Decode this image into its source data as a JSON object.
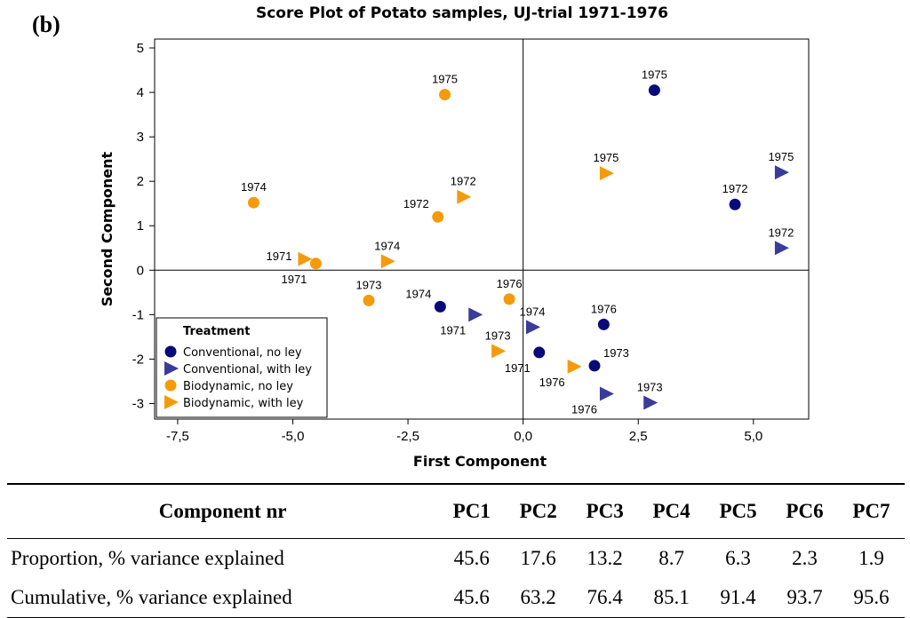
{
  "panel_label": "(b)",
  "chart_data": {
    "type": "scatter",
    "title": "Score Plot of Potato samples, UJ-trial 1971-1976",
    "xlabel": "First Component",
    "ylabel": "Second Component",
    "xlim": [
      -8.0,
      6.2
    ],
    "ylim": [
      -3.35,
      5.2
    ],
    "xticks": [
      -7.5,
      -5.0,
      -2.5,
      0.0,
      2.5,
      5.0
    ],
    "xtick_labels": [
      "-7,5",
      "-5,0",
      "-2,5",
      "0,0",
      "2,5",
      "5,0"
    ],
    "yticks": [
      -3,
      -2,
      -1,
      0,
      1,
      2,
      3,
      4,
      5
    ],
    "ytick_labels": [
      "-3",
      "-2",
      "-1",
      "0",
      "1",
      "2",
      "3",
      "4",
      "5"
    ],
    "reference_lines": {
      "x": 0,
      "y": 0
    },
    "legend": {
      "title": "Treatment",
      "position": "bottom-left",
      "entries": [
        "Conventional, no ley",
        "Conventional, with ley",
        "Biodynamic, no ley",
        "Biodynamic, with ley"
      ]
    },
    "series": [
      {
        "name": "Conventional, no ley",
        "marker": "circle",
        "color": "#0a0a78",
        "points": [
          {
            "x": 2.85,
            "y": 4.05,
            "label": "1975",
            "label_pos": "above"
          },
          {
            "x": 4.6,
            "y": 1.48,
            "label": "1972",
            "label_pos": "above"
          },
          {
            "x": -1.8,
            "y": -0.82,
            "label": "1974",
            "label_pos": "above-left"
          },
          {
            "x": 1.75,
            "y": -1.22,
            "label": "1976",
            "label_pos": "above"
          },
          {
            "x": 0.35,
            "y": -1.85,
            "label": "1971",
            "label_pos": "below-left"
          },
          {
            "x": 1.55,
            "y": -2.15,
            "label": "1973",
            "label_pos": "above-right"
          }
        ]
      },
      {
        "name": "Conventional, with ley",
        "marker": "triangle-right",
        "color": "#3b3b9b",
        "points": [
          {
            "x": 5.6,
            "y": 2.2,
            "label": "1975",
            "label_pos": "above"
          },
          {
            "x": 5.6,
            "y": 0.5,
            "label": "1972",
            "label_pos": "above"
          },
          {
            "x": -1.05,
            "y": -1.0,
            "label": "1971",
            "label_pos": "below-left"
          },
          {
            "x": 0.2,
            "y": -1.28,
            "label": "1974",
            "label_pos": "above"
          },
          {
            "x": 1.8,
            "y": -2.78,
            "label": "1976",
            "label_pos": "below-left"
          },
          {
            "x": 2.75,
            "y": -2.98,
            "label": "1973",
            "label_pos": "above"
          }
        ]
      },
      {
        "name": "Biodynamic, no ley",
        "marker": "circle",
        "color": "#f59b0b",
        "points": [
          {
            "x": -1.7,
            "y": 3.95,
            "label": "1975",
            "label_pos": "above"
          },
          {
            "x": -5.85,
            "y": 1.52,
            "label": "1974",
            "label_pos": "above"
          },
          {
            "x": -1.85,
            "y": 1.2,
            "label": "1972",
            "label_pos": "above-left"
          },
          {
            "x": -4.5,
            "y": 0.15,
            "label": "1971",
            "label_pos": "below-left"
          },
          {
            "x": -3.35,
            "y": -0.68,
            "label": "1973",
            "label_pos": "above"
          },
          {
            "x": -0.3,
            "y": -0.65,
            "label": "1976",
            "label_pos": "above"
          }
        ]
      },
      {
        "name": "Biodynamic, with ley",
        "marker": "triangle-right",
        "color": "#f59b0b",
        "points": [
          {
            "x": 1.8,
            "y": 2.18,
            "label": "1975",
            "label_pos": "above"
          },
          {
            "x": -1.3,
            "y": 1.65,
            "label": "1972",
            "label_pos": "above"
          },
          {
            "x": -4.75,
            "y": 0.25,
            "label": "1971",
            "label_pos": "left"
          },
          {
            "x": -2.95,
            "y": 0.2,
            "label": "1974",
            "label_pos": "above"
          },
          {
            "x": -0.55,
            "y": -1.82,
            "label": "1973",
            "label_pos": "above"
          },
          {
            "x": 1.1,
            "y": -2.17,
            "label": "1976",
            "label_pos": "below-left"
          }
        ]
      }
    ]
  },
  "table": {
    "header_label": "Component nr",
    "columns": [
      "PC1",
      "PC2",
      "PC3",
      "PC4",
      "PC5",
      "PC6",
      "PC7"
    ],
    "rows": [
      {
        "label": "Proportion, % variance explained",
        "values": [
          "45.6",
          "17.6",
          "13.2",
          "8.7",
          "6.3",
          "2.3",
          "1.9"
        ]
      },
      {
        "label": "Cumulative, % variance explained",
        "values": [
          "45.6",
          "63.2",
          "76.4",
          "85.1",
          "91.4",
          "93.7",
          "95.6"
        ]
      }
    ]
  }
}
